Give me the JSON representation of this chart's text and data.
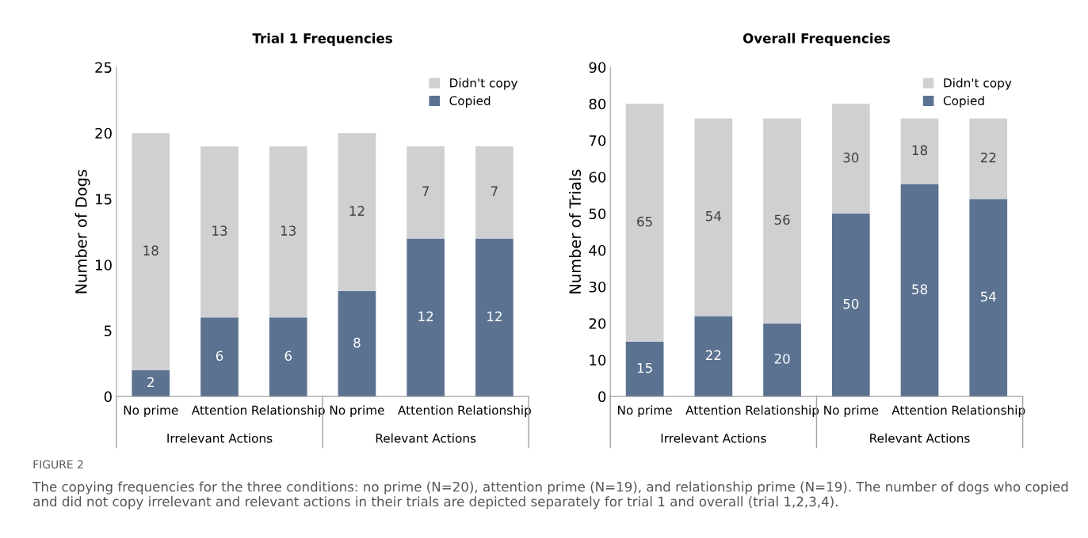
{
  "chart_data": [
    {
      "type": "bar",
      "title": "Trial 1 Frequencies",
      "ylabel": "Number of Dogs",
      "stacked": true,
      "data_labels": true,
      "grid": false,
      "legend": "top right",
      "categories": [
        "No prime",
        "Attention",
        "Relationship",
        "No prime",
        "Attention",
        "Relationship"
      ],
      "series": [
        {
          "name": "Copied",
          "color": "#5b7291",
          "values": [
            2,
            6,
            6,
            8,
            12,
            12
          ]
        },
        {
          "name": "Didn't copy",
          "color": "#d0cfd1",
          "values": [
            18,
            13,
            13,
            12,
            7,
            7
          ]
        }
      ],
      "ylim": [
        0,
        25
      ],
      "yticks": [
        0,
        5,
        10,
        15,
        20,
        25
      ],
      "annotations": [
        "Irrelevant Actions",
        "Relevant Actions",
        "FIGURE 2",
        "The copying frequencies for the three conditions: no prime (N=20), attention prime (N=19), and relationship prime (N=19). The number of dogs who copied and did not copy irrelevant and relevant actions in their trials are depicted separately for trial 1 and overall (trial 1,2,3,4)."
      ]
    },
    {
      "type": "bar",
      "title": "Overall Frequencies",
      "ylabel": "Number of Trials",
      "stacked": true,
      "data_labels": true,
      "grid": false,
      "legend": "top right",
      "categories": [
        "No prime",
        "Attention",
        "Relationship",
        "No prime",
        "Attention",
        "Relationship"
      ],
      "series": [
        {
          "name": "Copied",
          "color": "#5b7291",
          "values": [
            15,
            22,
            20,
            50,
            58,
            54
          ]
        },
        {
          "name": "Didn't copy",
          "color": "#d0cfd1",
          "values": [
            65,
            54,
            56,
            30,
            18,
            22
          ]
        }
      ],
      "ylim": [
        0,
        90
      ],
      "yticks": [
        0,
        10,
        20,
        30,
        40,
        50,
        60,
        70,
        80,
        90
      ],
      "annotations": [
        "Irrelevant Actions",
        "Relevant Actions"
      ]
    }
  ]
}
